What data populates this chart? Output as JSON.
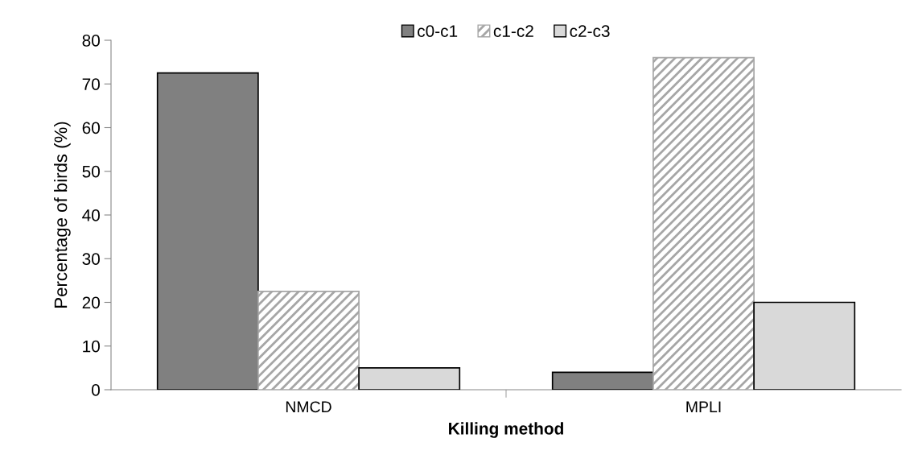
{
  "chart_data": {
    "type": "bar",
    "xlabel": "Killing method",
    "ylabel": "Percentage of birds (%)",
    "categories": [
      "NMCD",
      "MPLI"
    ],
    "series": [
      {
        "name": "c0-c1",
        "color": "#808080",
        "values": [
          72.5,
          4
        ]
      },
      {
        "name": "c1-c2",
        "color": "#a6a6a6",
        "values": [
          22.5,
          76
        ]
      },
      {
        "name": "c2-c3",
        "color": "#d9d9d9",
        "values": [
          5,
          20
        ]
      }
    ],
    "ylim": [
      0,
      80
    ],
    "yticks": [
      0,
      10,
      20,
      30,
      40,
      50,
      60,
      70,
      80
    ],
    "grid": false,
    "legend": "top"
  }
}
